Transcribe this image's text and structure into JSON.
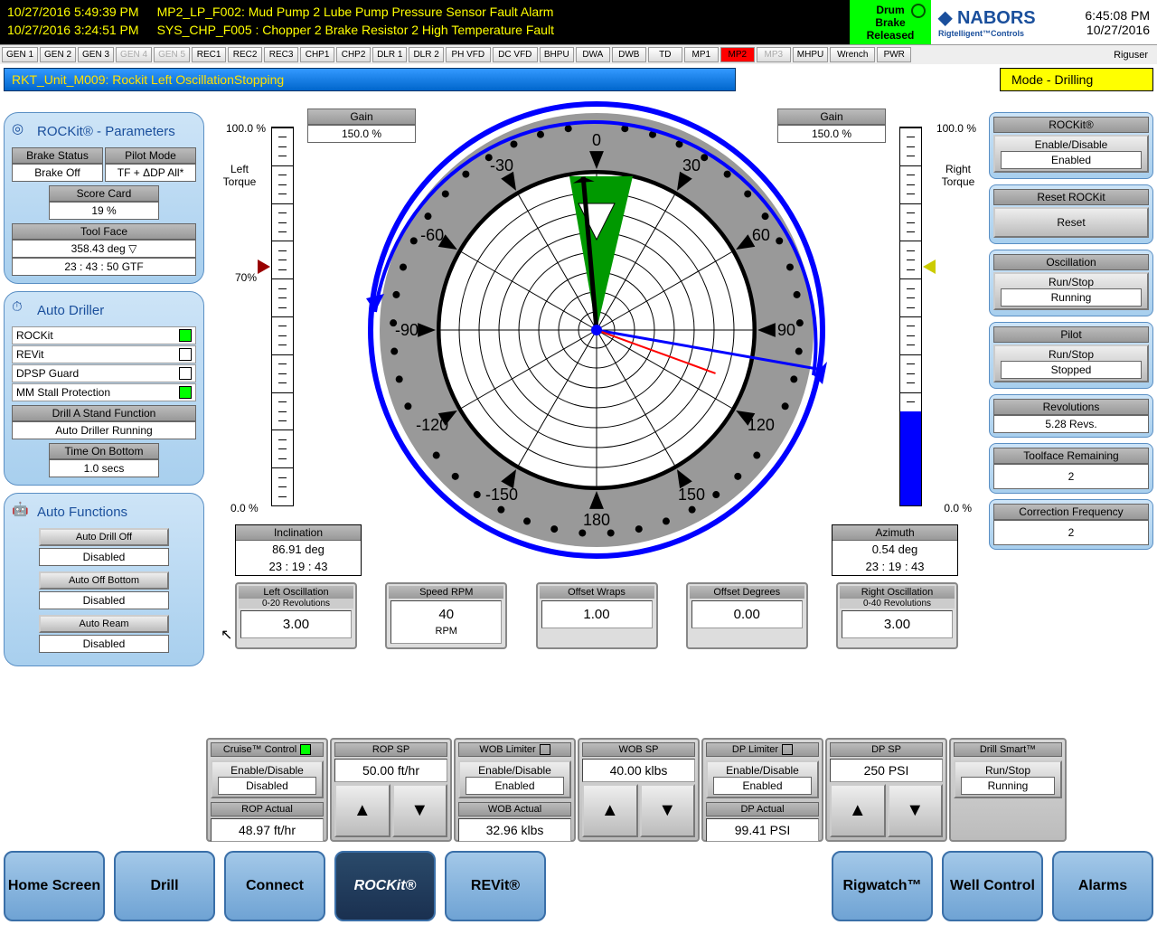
{
  "header": {
    "alarms": [
      {
        "ts": "10/27/2016 5:49:39 PM",
        "msg": "MP2_LP_F002: Mud Pump 2 Lube Pump Pressure Sensor Fault Alarm"
      },
      {
        "ts": "10/27/2016 3:24:51 PM",
        "msg": "SYS_CHP_F005 : Chopper 2 Brake Resistor 2 High Temperature Fault"
      }
    ],
    "drum_brake": {
      "l1": "Drum",
      "l2": "Brake",
      "l3": "Released"
    },
    "logo": {
      "name": "NABORS",
      "sub": "Rigtelligent™Controls"
    },
    "clock": {
      "time": "6:45:08 PM",
      "date": "10/27/2016"
    },
    "user": "Riguser"
  },
  "status_buttons": [
    "GEN 1",
    "GEN 2",
    "GEN 3",
    "GEN 4",
    "GEN 5",
    "REC1",
    "REC2",
    "REC3",
    "CHP1",
    "CHP2",
    "DLR 1",
    "DLR 2",
    "PH VFD",
    "DC VFD",
    "BHPU",
    "DWA",
    "DWB",
    "TD",
    "MP1",
    "MP2",
    "MP3",
    "MHPU",
    "Wrench",
    "PWR"
  ],
  "status_meta": {
    "dim": [
      3,
      4,
      20
    ],
    "red": [
      19
    ]
  },
  "msg_bar": "RKT_Unit_M009: Rockit Left OscillationStopping",
  "mode": "Mode - Drilling",
  "left": {
    "rockit_title": "ROCKit® - Parameters",
    "brake_status": {
      "h": "Brake Status",
      "v": "Brake Off"
    },
    "pilot_mode": {
      "h": "Pilot Mode",
      "v": "TF + ΔDP All*"
    },
    "score": {
      "h": "Score Card",
      "v": "19    %"
    },
    "toolface": {
      "h": "Tool Face",
      "v1": "358.43 deg",
      "v2": "23 : 43 : 50        GTF"
    },
    "auto_title": "Auto Driller",
    "auto_items": [
      {
        "label": "ROCKit",
        "green": true
      },
      {
        "label": "REVit",
        "green": false
      },
      {
        "label": "DPSP Guard",
        "green": false
      },
      {
        "label": "MM Stall Protection",
        "green": true
      }
    ],
    "drill_stand": {
      "h": "Drill A Stand Function",
      "v": "Auto Driller Running"
    },
    "tob": {
      "h": "Time On Bottom",
      "v": "1.0     secs"
    },
    "af_title": "Auto Functions",
    "af_items": [
      {
        "h": "Auto Drill Off",
        "v": "Disabled"
      },
      {
        "h": "Auto Off Bottom",
        "v": "Disabled"
      },
      {
        "h": "Auto Ream",
        "v": "Disabled"
      }
    ]
  },
  "right": {
    "rockit": {
      "h": "ROCKit®",
      "b": "Enable/Disable",
      "v": "Enabled"
    },
    "reset": {
      "h": "Reset ROCKit",
      "b": "Reset"
    },
    "osc": {
      "h": "Oscillation",
      "b": "Run/Stop",
      "v": "Running"
    },
    "pilot": {
      "h": "Pilot",
      "b": "Run/Stop",
      "v": "Stopped"
    },
    "revs": {
      "h": "Revolutions",
      "v": "5.28   Revs."
    },
    "tfr": {
      "h": "Toolface Remaining",
      "v": "2"
    },
    "cf": {
      "h": "Correction Frequency",
      "v": "2"
    }
  },
  "center": {
    "gain_left": {
      "h": "Gain",
      "v": "150.0    %"
    },
    "gain_right": {
      "h": "Gain",
      "v": "150.0    %"
    },
    "scale_top": "100.0 %",
    "scale_70": "70%",
    "scale_bot": "0.0 %",
    "left_torque": "Left\nTorque",
    "right_torque": "Right\nTorque",
    "inclination": {
      "h": "Inclination",
      "v1": "86.91 deg",
      "v2": "23 :  19 :  43"
    },
    "azimuth": {
      "h": "Azimuth",
      "v1": "0.54 deg",
      "v2": "23 :  19 :  43"
    },
    "left_bar": {
      "fill_pct": 0,
      "marker_pct": 65
    },
    "right_bar": {
      "fill_pct": 25,
      "marker_pct": 65
    },
    "compass": {
      "ticks": [
        0,
        30,
        60,
        90,
        120,
        150,
        180,
        -150,
        -120,
        -90,
        -60,
        -30
      ],
      "blue_needle_deg": 100,
      "black_needle_deg": -5,
      "red_needle_deg": 110
    },
    "osc_boxes": [
      {
        "h": "Left Oscillation",
        "h2": "0-20 Revolutions",
        "v": "3.00"
      },
      {
        "h": "Speed RPM",
        "h2": "",
        "v": "40",
        "u": "RPM"
      },
      {
        "h": "Offset Wraps",
        "h2": "",
        "v": "1.00"
      },
      {
        "h": "Offset Degrees",
        "h2": "",
        "v": "0.00"
      },
      {
        "h": "Right Oscillation",
        "h2": "0-40 Revolutions",
        "v": "3.00"
      }
    ]
  },
  "ctrl": {
    "cruise": {
      "h": "Cruise™ Control",
      "b": "Enable/Disable",
      "v": "Disabled",
      "ind": true
    },
    "rop_sp": {
      "h": "ROP SP",
      "v": "50.00   ft/hr"
    },
    "rop_act": {
      "h": "ROP Actual",
      "v": "48.97   ft/hr"
    },
    "wob_lim": {
      "h": "WOB Limiter",
      "b": "Enable/Disable",
      "v": "Enabled"
    },
    "wob_sp": {
      "h": "WOB SP",
      "v": "40.00   klbs"
    },
    "wob_act": {
      "h": "WOB Actual",
      "v": "32.96   klbs"
    },
    "dp_lim": {
      "h": "DP Limiter",
      "b": "Enable/Disable",
      "v": "Enabled"
    },
    "dp_sp": {
      "h": "DP SP",
      "v": "250   PSI"
    },
    "dp_act": {
      "h": "DP Actual",
      "v": "99.41   PSI"
    },
    "ds": {
      "h": "Drill Smart™",
      "b": "Run/Stop",
      "v": "Running"
    }
  },
  "nav": [
    "Home Screen",
    "Drill",
    "Connect",
    "ROCKit®",
    "REVit®"
  ],
  "nav_right": [
    "Rigwatch™",
    "Well Control",
    "Alarms"
  ],
  "nav_active": 3
}
